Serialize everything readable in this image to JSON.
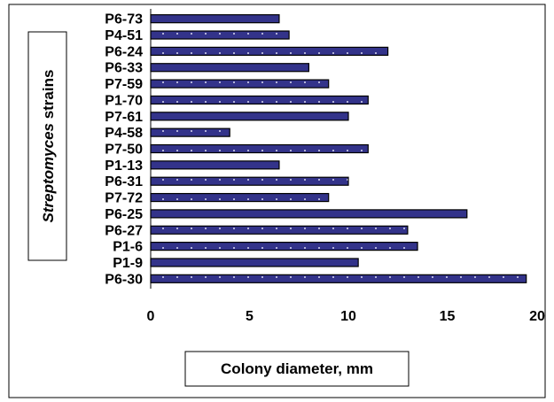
{
  "chart_data": {
    "type": "bar",
    "orientation": "horizontal",
    "categories": [
      "P6-73",
      "P4-51",
      "P6-24",
      "P6-33",
      "P7-59",
      "P1-70",
      "P7-61",
      "P4-58",
      "P7-50",
      "P1-13",
      "P6-31",
      "P7-72",
      "P6-25",
      "P6-27",
      "P1-6",
      "P1-9",
      "P6-30"
    ],
    "values": [
      6.5,
      7,
      12,
      8,
      9,
      11,
      10,
      4,
      11,
      6.5,
      10,
      9,
      16,
      13,
      13.5,
      10.5,
      19
    ],
    "title": "",
    "xlabel": "Colony diameter, mm",
    "ylabel_italic": "Streptomyces",
    "ylabel_rest": " strains",
    "xlim": [
      0,
      20
    ],
    "xticks": [
      "0",
      "5",
      "10",
      "15",
      "20"
    ],
    "grid": false,
    "legend": "none",
    "bar_color": "#33338a",
    "bar_dot_color": "#d8d8f0",
    "frame_color": "#000000"
  }
}
